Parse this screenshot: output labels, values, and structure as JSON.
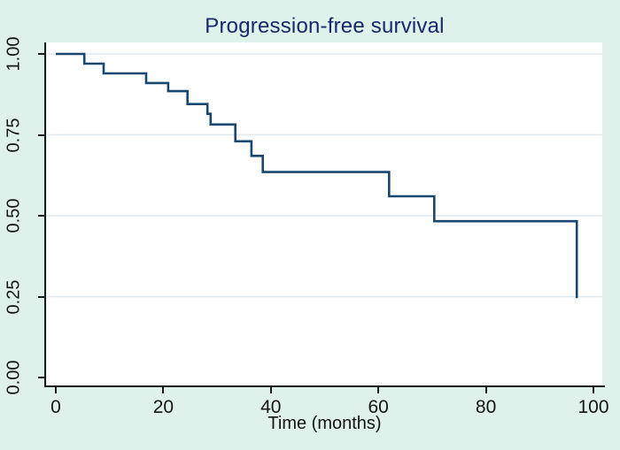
{
  "chart_data": {
    "type": "line",
    "subtype": "kaplan_meier_step",
    "title": "Progression-free survival",
    "xlabel": "Time (months)",
    "ylabel": "",
    "xlim": [
      0,
      100
    ],
    "ylim": [
      0,
      1
    ],
    "grid": "horizontal",
    "legend": "none",
    "x_ticks": [
      {
        "value": 0,
        "label": "0"
      },
      {
        "value": 20,
        "label": "20"
      },
      {
        "value": 40,
        "label": "40"
      },
      {
        "value": 60,
        "label": "60"
      },
      {
        "value": 80,
        "label": "80"
      },
      {
        "value": 100,
        "label": "100"
      }
    ],
    "y_ticks": [
      {
        "value": 0.0,
        "label": "0.00"
      },
      {
        "value": 0.25,
        "label": "0.25"
      },
      {
        "value": 0.5,
        "label": "0.50"
      },
      {
        "value": 0.75,
        "label": "0.75"
      },
      {
        "value": 1.0,
        "label": "1.00"
      }
    ],
    "series": [
      {
        "name": "Progression-free survival",
        "style": "step",
        "points": [
          [
            0,
            1.0
          ],
          [
            5.3,
            0.97
          ],
          [
            8.9,
            0.94
          ],
          [
            16.8,
            0.91
          ],
          [
            20.9,
            0.885
          ],
          [
            24.5,
            0.845
          ],
          [
            28.2,
            0.815
          ],
          [
            28.8,
            0.782
          ],
          [
            33.4,
            0.73
          ],
          [
            36.4,
            0.685
          ],
          [
            38.5,
            0.635
          ],
          [
            62.0,
            0.56
          ],
          [
            70.4,
            0.483
          ],
          [
            96.9,
            0.245
          ]
        ]
      }
    ],
    "colors": {
      "line": "#1A476F",
      "background": "#def1ea",
      "plot_background": "#ffffff",
      "grid": "#dfeaf2",
      "axis": "#1a1a1a",
      "tick_label": "#141414",
      "title": "#15296b"
    }
  }
}
